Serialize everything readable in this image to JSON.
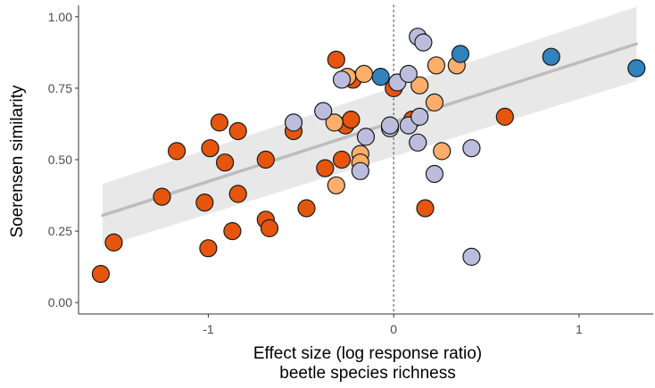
{
  "chart_data": {
    "type": "scatter",
    "xlabel": "Effect size (log response ratio)",
    "xlabel2": "beetle species richness",
    "ylabel": "Soerensen similarity",
    "xlim": [
      -1.7,
      1.4
    ],
    "ylim": [
      -0.04,
      1.04
    ],
    "x_ticks": [
      -1,
      0,
      1
    ],
    "x_tick_labels": [
      "-1",
      "0",
      "1"
    ],
    "y_ticks": [
      0,
      0.25,
      0.5,
      0.75,
      1
    ],
    "y_tick_labels": [
      "0.00",
      "0.25",
      "0.50",
      "0.75",
      "1.00"
    ],
    "grid": false,
    "reference_line": {
      "x": 0,
      "style": "dotted",
      "color": "#7f7f7f"
    },
    "regression": {
      "x": [
        -1.57,
        1.31
      ],
      "y": [
        0.305,
        0.905
      ],
      "ci_upper": [
        0.415,
        1.035
      ],
      "ci_lower": [
        0.195,
        0.775
      ],
      "line_color": "#bdbdbd",
      "band_color": "#e5e5e5"
    },
    "series": [
      {
        "color": "#e6550d",
        "points": [
          [
            -1.58,
            0.1
          ],
          [
            -1.51,
            0.21
          ],
          [
            -1.25,
            0.37
          ],
          [
            -1.17,
            0.53
          ],
          [
            -1.02,
            0.35
          ],
          [
            -1.0,
            0.19
          ],
          [
            -0.99,
            0.54
          ],
          [
            -0.94,
            0.63
          ],
          [
            -0.91,
            0.49
          ],
          [
            -0.87,
            0.25
          ],
          [
            -0.84,
            0.6
          ],
          [
            -0.84,
            0.38
          ],
          [
            -0.69,
            0.29
          ],
          [
            -0.69,
            0.5
          ],
          [
            -0.67,
            0.26
          ],
          [
            -0.54,
            0.6
          ],
          [
            -0.47,
            0.33
          ],
          [
            -0.37,
            0.47
          ],
          [
            -0.31,
            0.85
          ],
          [
            -0.28,
            0.5
          ],
          [
            -0.26,
            0.62
          ],
          [
            -0.23,
            0.64
          ],
          [
            -0.22,
            0.78
          ],
          [
            0.0,
            0.75
          ],
          [
            0.1,
            0.64
          ],
          [
            0.17,
            0.33
          ],
          [
            0.6,
            0.65
          ]
        ]
      },
      {
        "color": "#fdae6b",
        "points": [
          [
            -0.32,
            0.63
          ],
          [
            -0.31,
            0.41
          ],
          [
            -0.25,
            0.79
          ],
          [
            -0.16,
            0.8
          ],
          [
            -0.18,
            0.52
          ],
          [
            -0.18,
            0.49
          ],
          [
            0.14,
            0.76
          ],
          [
            0.22,
            0.7
          ],
          [
            0.23,
            0.83
          ],
          [
            0.26,
            0.53
          ],
          [
            0.34,
            0.83
          ]
        ]
      },
      {
        "color": "#bcbddc",
        "points": [
          [
            -0.54,
            0.63
          ],
          [
            -0.38,
            0.67
          ],
          [
            -0.28,
            0.78
          ],
          [
            -0.18,
            0.46
          ],
          [
            -0.15,
            0.58
          ],
          [
            -0.02,
            0.61
          ],
          [
            -0.02,
            0.62
          ],
          [
            0.02,
            0.77
          ],
          [
            0.08,
            0.62
          ],
          [
            0.08,
            0.8
          ],
          [
            0.13,
            0.56
          ],
          [
            0.14,
            0.65
          ],
          [
            0.13,
            0.93
          ],
          [
            0.16,
            0.91
          ],
          [
            0.22,
            0.45
          ],
          [
            0.42,
            0.54
          ],
          [
            0.42,
            0.16
          ]
        ]
      },
      {
        "color": "#3182bd",
        "points": [
          [
            -0.07,
            0.79
          ],
          [
            0.36,
            0.87
          ],
          [
            0.85,
            0.86
          ],
          [
            1.31,
            0.82
          ]
        ]
      }
    ]
  }
}
